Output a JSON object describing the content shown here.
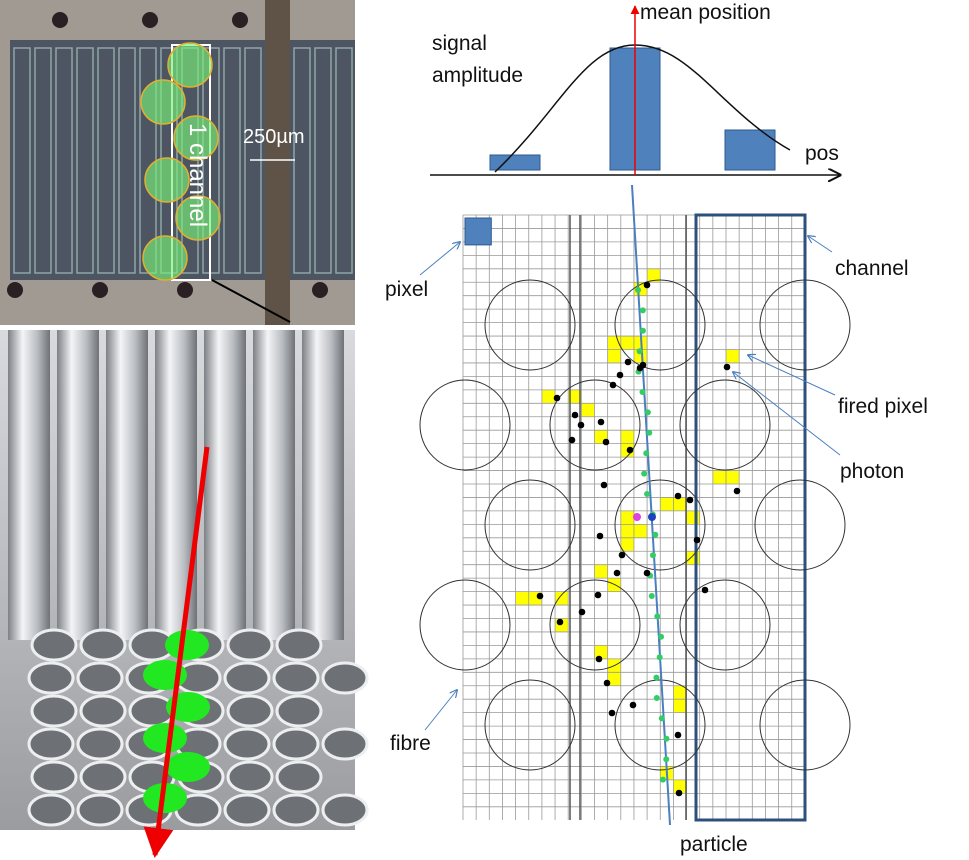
{
  "histogram": {
    "title": "mean position",
    "y_label_line1": "signal",
    "y_label_line2": "amplitude",
    "x_label": "pos"
  },
  "photo": {
    "scale_label": "250µm",
    "channel_label": "1 channel"
  },
  "labels": {
    "pixel": "pixel",
    "channel": "channel",
    "fired_pixel": "fired pixel",
    "photon": "photon",
    "fibre": "fibre",
    "particle": "particle"
  }
}
